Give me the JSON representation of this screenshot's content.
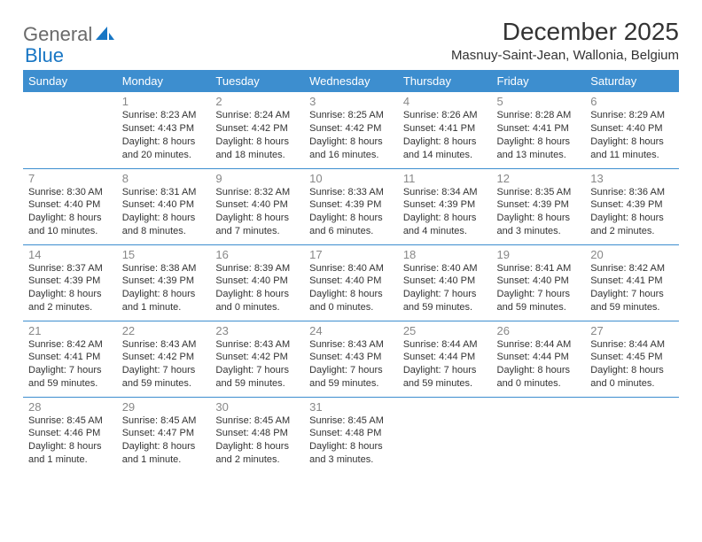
{
  "brand": {
    "part1": "General",
    "part2": "Blue"
  },
  "title": "December 2025",
  "location": "Masnuy-Saint-Jean, Wallonia, Belgium",
  "day_headers": [
    "Sunday",
    "Monday",
    "Tuesday",
    "Wednesday",
    "Thursday",
    "Friday",
    "Saturday"
  ],
  "colors": {
    "header_bg": "#3d8ecf",
    "header_text": "#ffffff",
    "daynum": "#888888",
    "body_text": "#333333",
    "logo_gray": "#6a6a6a",
    "logo_blue": "#1876c4",
    "row_border": "#3d8ecf"
  },
  "weeks": [
    [
      null,
      {
        "n": "1",
        "sr": "Sunrise: 8:23 AM",
        "ss": "Sunset: 4:43 PM",
        "d1": "Daylight: 8 hours",
        "d2": "and 20 minutes."
      },
      {
        "n": "2",
        "sr": "Sunrise: 8:24 AM",
        "ss": "Sunset: 4:42 PM",
        "d1": "Daylight: 8 hours",
        "d2": "and 18 minutes."
      },
      {
        "n": "3",
        "sr": "Sunrise: 8:25 AM",
        "ss": "Sunset: 4:42 PM",
        "d1": "Daylight: 8 hours",
        "d2": "and 16 minutes."
      },
      {
        "n": "4",
        "sr": "Sunrise: 8:26 AM",
        "ss": "Sunset: 4:41 PM",
        "d1": "Daylight: 8 hours",
        "d2": "and 14 minutes."
      },
      {
        "n": "5",
        "sr": "Sunrise: 8:28 AM",
        "ss": "Sunset: 4:41 PM",
        "d1": "Daylight: 8 hours",
        "d2": "and 13 minutes."
      },
      {
        "n": "6",
        "sr": "Sunrise: 8:29 AM",
        "ss": "Sunset: 4:40 PM",
        "d1": "Daylight: 8 hours",
        "d2": "and 11 minutes."
      }
    ],
    [
      {
        "n": "7",
        "sr": "Sunrise: 8:30 AM",
        "ss": "Sunset: 4:40 PM",
        "d1": "Daylight: 8 hours",
        "d2": "and 10 minutes."
      },
      {
        "n": "8",
        "sr": "Sunrise: 8:31 AM",
        "ss": "Sunset: 4:40 PM",
        "d1": "Daylight: 8 hours",
        "d2": "and 8 minutes."
      },
      {
        "n": "9",
        "sr": "Sunrise: 8:32 AM",
        "ss": "Sunset: 4:40 PM",
        "d1": "Daylight: 8 hours",
        "d2": "and 7 minutes."
      },
      {
        "n": "10",
        "sr": "Sunrise: 8:33 AM",
        "ss": "Sunset: 4:39 PM",
        "d1": "Daylight: 8 hours",
        "d2": "and 6 minutes."
      },
      {
        "n": "11",
        "sr": "Sunrise: 8:34 AM",
        "ss": "Sunset: 4:39 PM",
        "d1": "Daylight: 8 hours",
        "d2": "and 4 minutes."
      },
      {
        "n": "12",
        "sr": "Sunrise: 8:35 AM",
        "ss": "Sunset: 4:39 PM",
        "d1": "Daylight: 8 hours",
        "d2": "and 3 minutes."
      },
      {
        "n": "13",
        "sr": "Sunrise: 8:36 AM",
        "ss": "Sunset: 4:39 PM",
        "d1": "Daylight: 8 hours",
        "d2": "and 2 minutes."
      }
    ],
    [
      {
        "n": "14",
        "sr": "Sunrise: 8:37 AM",
        "ss": "Sunset: 4:39 PM",
        "d1": "Daylight: 8 hours",
        "d2": "and 2 minutes."
      },
      {
        "n": "15",
        "sr": "Sunrise: 8:38 AM",
        "ss": "Sunset: 4:39 PM",
        "d1": "Daylight: 8 hours",
        "d2": "and 1 minute."
      },
      {
        "n": "16",
        "sr": "Sunrise: 8:39 AM",
        "ss": "Sunset: 4:40 PM",
        "d1": "Daylight: 8 hours",
        "d2": "and 0 minutes."
      },
      {
        "n": "17",
        "sr": "Sunrise: 8:40 AM",
        "ss": "Sunset: 4:40 PM",
        "d1": "Daylight: 8 hours",
        "d2": "and 0 minutes."
      },
      {
        "n": "18",
        "sr": "Sunrise: 8:40 AM",
        "ss": "Sunset: 4:40 PM",
        "d1": "Daylight: 7 hours",
        "d2": "and 59 minutes."
      },
      {
        "n": "19",
        "sr": "Sunrise: 8:41 AM",
        "ss": "Sunset: 4:40 PM",
        "d1": "Daylight: 7 hours",
        "d2": "and 59 minutes."
      },
      {
        "n": "20",
        "sr": "Sunrise: 8:42 AM",
        "ss": "Sunset: 4:41 PM",
        "d1": "Daylight: 7 hours",
        "d2": "and 59 minutes."
      }
    ],
    [
      {
        "n": "21",
        "sr": "Sunrise: 8:42 AM",
        "ss": "Sunset: 4:41 PM",
        "d1": "Daylight: 7 hours",
        "d2": "and 59 minutes."
      },
      {
        "n": "22",
        "sr": "Sunrise: 8:43 AM",
        "ss": "Sunset: 4:42 PM",
        "d1": "Daylight: 7 hours",
        "d2": "and 59 minutes."
      },
      {
        "n": "23",
        "sr": "Sunrise: 8:43 AM",
        "ss": "Sunset: 4:42 PM",
        "d1": "Daylight: 7 hours",
        "d2": "and 59 minutes."
      },
      {
        "n": "24",
        "sr": "Sunrise: 8:43 AM",
        "ss": "Sunset: 4:43 PM",
        "d1": "Daylight: 7 hours",
        "d2": "and 59 minutes."
      },
      {
        "n": "25",
        "sr": "Sunrise: 8:44 AM",
        "ss": "Sunset: 4:44 PM",
        "d1": "Daylight: 7 hours",
        "d2": "and 59 minutes."
      },
      {
        "n": "26",
        "sr": "Sunrise: 8:44 AM",
        "ss": "Sunset: 4:44 PM",
        "d1": "Daylight: 8 hours",
        "d2": "and 0 minutes."
      },
      {
        "n": "27",
        "sr": "Sunrise: 8:44 AM",
        "ss": "Sunset: 4:45 PM",
        "d1": "Daylight: 8 hours",
        "d2": "and 0 minutes."
      }
    ],
    [
      {
        "n": "28",
        "sr": "Sunrise: 8:45 AM",
        "ss": "Sunset: 4:46 PM",
        "d1": "Daylight: 8 hours",
        "d2": "and 1 minute."
      },
      {
        "n": "29",
        "sr": "Sunrise: 8:45 AM",
        "ss": "Sunset: 4:47 PM",
        "d1": "Daylight: 8 hours",
        "d2": "and 1 minute."
      },
      {
        "n": "30",
        "sr": "Sunrise: 8:45 AM",
        "ss": "Sunset: 4:48 PM",
        "d1": "Daylight: 8 hours",
        "d2": "and 2 minutes."
      },
      {
        "n": "31",
        "sr": "Sunrise: 8:45 AM",
        "ss": "Sunset: 4:48 PM",
        "d1": "Daylight: 8 hours",
        "d2": "and 3 minutes."
      },
      null,
      null,
      null
    ]
  ]
}
